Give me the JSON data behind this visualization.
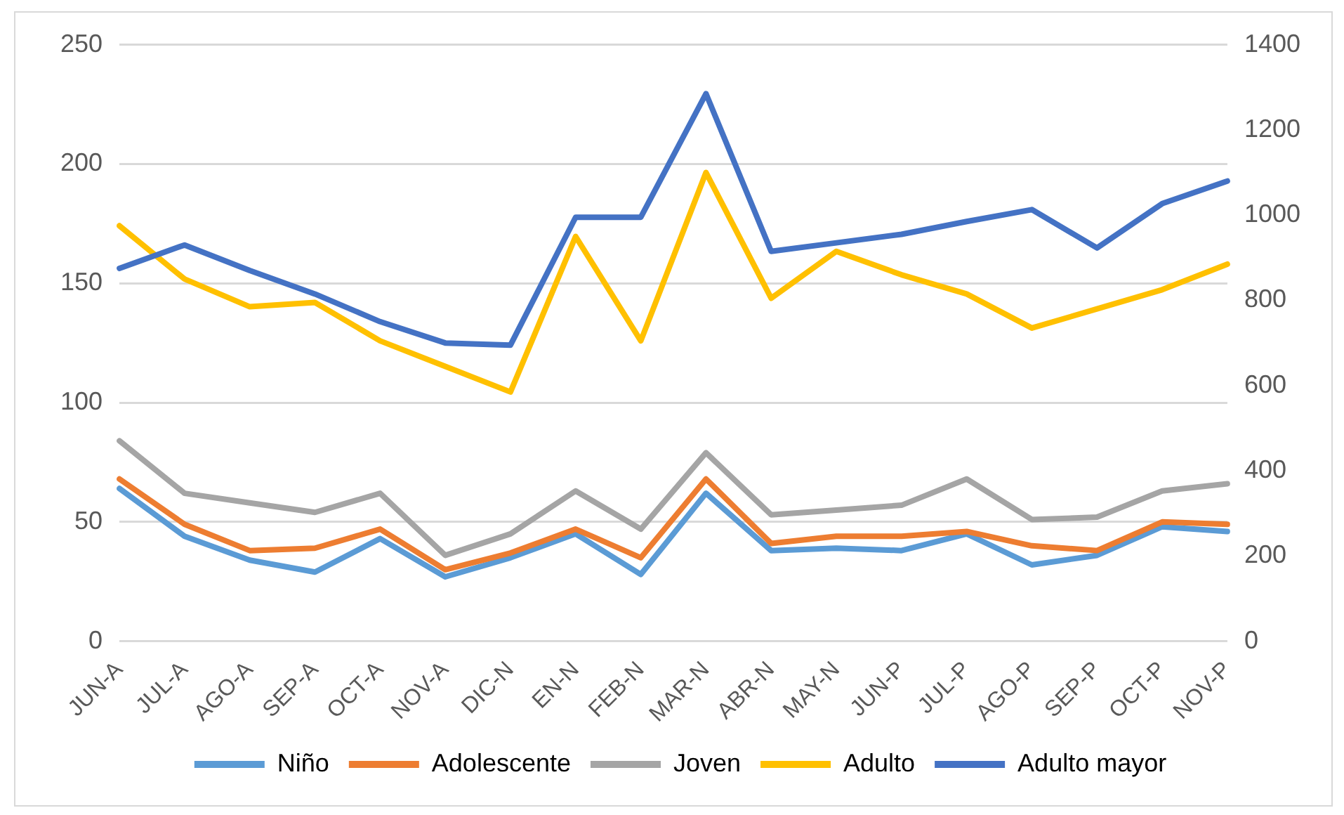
{
  "chart_data": {
    "type": "line",
    "categories": [
      "JUN-A",
      "JUL-A",
      "AGO-A",
      "SEP-A",
      "OCT-A",
      "NOV-A",
      "DIC-N",
      "EN-N",
      "FEB-N",
      "MAR-N",
      "ABR-N",
      "MAY-N",
      "JUN-P",
      "JUL-P",
      "AGO-P",
      "SEP-P",
      "OCT-P",
      "NOV-P"
    ],
    "series": [
      {
        "name": "Niño",
        "color": "#5b9bd5",
        "values": [
          64,
          44,
          34,
          29,
          43,
          27,
          35,
          45,
          28,
          62,
          38,
          39,
          38,
          45,
          32,
          36,
          48,
          46
        ]
      },
      {
        "name": "Adolescente",
        "color": "#ed7d31",
        "values": [
          68,
          49,
          38,
          39,
          47,
          30,
          37,
          47,
          35,
          68,
          41,
          44,
          44,
          46,
          40,
          38,
          50,
          49
        ]
      },
      {
        "name": "Joven",
        "color": "#a5a5a5",
        "values": [
          84,
          62,
          58,
          54,
          62,
          36,
          45,
          63,
          47,
          79,
          53,
          55,
          57,
          68,
          51,
          52,
          63,
          66
        ]
      },
      {
        "name": "Adulto",
        "color": "#ffc000",
        "axis": "y2",
        "values": [
          975,
          850,
          785,
          795,
          705,
          645,
          585,
          950,
          705,
          1100,
          805,
          915,
          860,
          815,
          735,
          780,
          825,
          885
        ]
      },
      {
        "name": "Adulto mayor",
        "color": "#4472c4",
        "axis": "y2",
        "values": [
          875,
          930,
          870,
          815,
          750,
          700,
          695,
          995,
          995,
          1285,
          915,
          935,
          955,
          985,
          1013,
          923,
          1027,
          1080
        ]
      }
    ],
    "ylim": [
      0,
      250
    ],
    "yticks": [
      0,
      50,
      100,
      150,
      200,
      250
    ],
    "y2lim": [
      0,
      1400
    ],
    "y2ticks": [
      0,
      200,
      400,
      600,
      800,
      1000,
      1200,
      1400
    ],
    "grid": "y",
    "legend": "bottom",
    "marker": "none",
    "line_style": "solid"
  }
}
